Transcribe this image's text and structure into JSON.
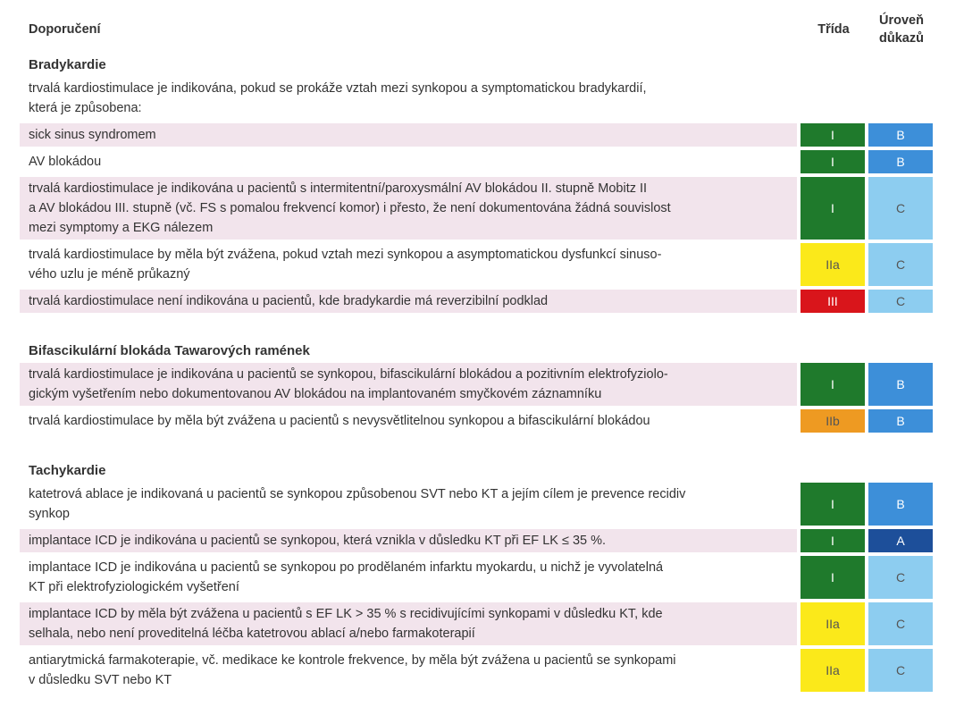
{
  "header": {
    "recommendation": "Doporučení",
    "class": "Třída",
    "level": "Úroveň\ndůkazů"
  },
  "colors": {
    "I": "#1f7a2c",
    "IIa": "#fbe91a",
    "IIb": "#ee9a22",
    "III": "#d9151b",
    "A": "#1d4f9a",
    "B": "#3d8fd9",
    "C": "#8dcdf0"
  },
  "sections": [
    {
      "title": "Bradykardie",
      "intro": "trvalá kardiostimulace je indikována, pokud se prokáže vztah mezi synkopou a symptomatickou bradykardií,\nkterá je způsobena:",
      "rows": [
        {
          "text": "sick sinus syndromem",
          "class": "I",
          "level": "B"
        },
        {
          "text": "AV blokádou",
          "class": "I",
          "level": "B"
        },
        {
          "text": "trvalá kardiostimulace je indikována u pacientů s intermitentní/paroxysmální AV blokádou II. stupně Mobitz II\na AV blokádou III. stupně (vč. FS s pomalou frekvencí komor) i přesto, že není dokumentována žádná souvislost\nmezi symptomy a EKG nálezem",
          "class": "I",
          "level": "C"
        },
        {
          "text": "trvalá kardiostimulace by měla být zvážena, pokud vztah mezi synkopou a asymptomatickou dysfunkcí sinuso-\nvého uzlu je méně průkazný",
          "class": "IIa",
          "level": "C"
        },
        {
          "text": "trvalá kardiostimulace není indikována u pacientů, kde bradykardie má reverzibilní podklad",
          "class": "III",
          "level": "C"
        }
      ]
    },
    {
      "title": "Bifascikulární blokáda Tawarových ramének",
      "rows": [
        {
          "text": "trvalá kardiostimulace je indikována u pacientů se synkopou, bifascikulární blokádou a pozitivním elektrofyziolo-\ngickým vyšetřením nebo dokumentovanou AV blokádou na implantovaném smyčkovém záznamníku",
          "class": "I",
          "level": "B"
        },
        {
          "text": "trvalá kardiostimulace by měla být zvážena u pacientů s nevysvětlitelnou synkopou a bifascikulární blokádou",
          "class": "IIb",
          "level": "B"
        }
      ]
    },
    {
      "title": "Tachykardie",
      "rows": [
        {
          "text": "katetrová ablace je indikovaná u pacientů se synkopou způsobenou SVT nebo KT a jejím cílem je prevence recidiv\nsynkop",
          "class": "I",
          "level": "B"
        },
        {
          "text": "implantace ICD je indikována u pacientů se synkopou, která vznikla v důsledku KT při EF LK ≤ 35 %.",
          "class": "I",
          "level": "A"
        },
        {
          "text": "implantace ICD je indikována u pacientů se synkopou po prodělaném infarktu myokardu, u nichž je vyvolatelná\nKT při elektrofyziologickém vyšetření",
          "class": "I",
          "level": "C"
        },
        {
          "text": "implantace ICD by měla být zvážena u pacientů s EF LK > 35 % s recidivujícími synkopami v důsledku KT, kde\nselhala, nebo není proveditelná léčba katetrovou ablací a/nebo farmakoterapií",
          "class": "IIa",
          "level": "C"
        },
        {
          "text": "antiarytmická farmakoterapie, vč. medikace ke kontrole frekvence, by měla být zvážena u pacientů se synkopami\nv důsledku SVT nebo KT",
          "class": "IIa",
          "level": "C"
        }
      ]
    }
  ]
}
